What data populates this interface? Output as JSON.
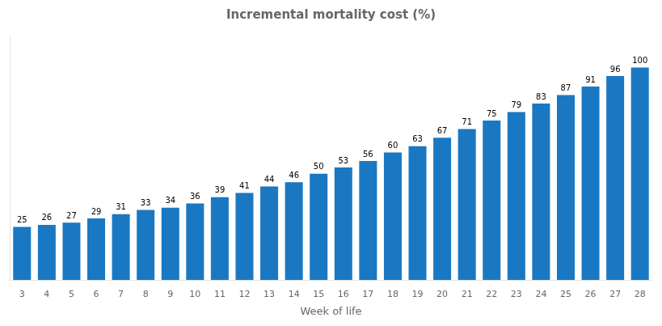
{
  "chart_data": {
    "type": "bar",
    "title": "Incremental mortality cost (%)",
    "x_label": "Week of life",
    "categories": [
      "3",
      "4",
      "5",
      "6",
      "7",
      "8",
      "9",
      "10",
      "11",
      "12",
      "13",
      "14",
      "15",
      "16",
      "17",
      "18",
      "19",
      "20",
      "21",
      "22",
      "23",
      "24",
      "25",
      "26",
      "27",
      "28"
    ],
    "values": [
      25,
      26,
      27,
      29,
      31,
      33,
      34,
      36,
      39,
      41,
      44,
      46,
      50,
      53,
      56,
      60,
      63,
      67,
      71,
      75,
      79,
      83,
      87,
      91,
      96,
      100
    ],
    "color": "#1a78c2",
    "ylim": [
      0,
      115
    ],
    "grid": false,
    "data_labels": true,
    "tick_labels": "x"
  }
}
